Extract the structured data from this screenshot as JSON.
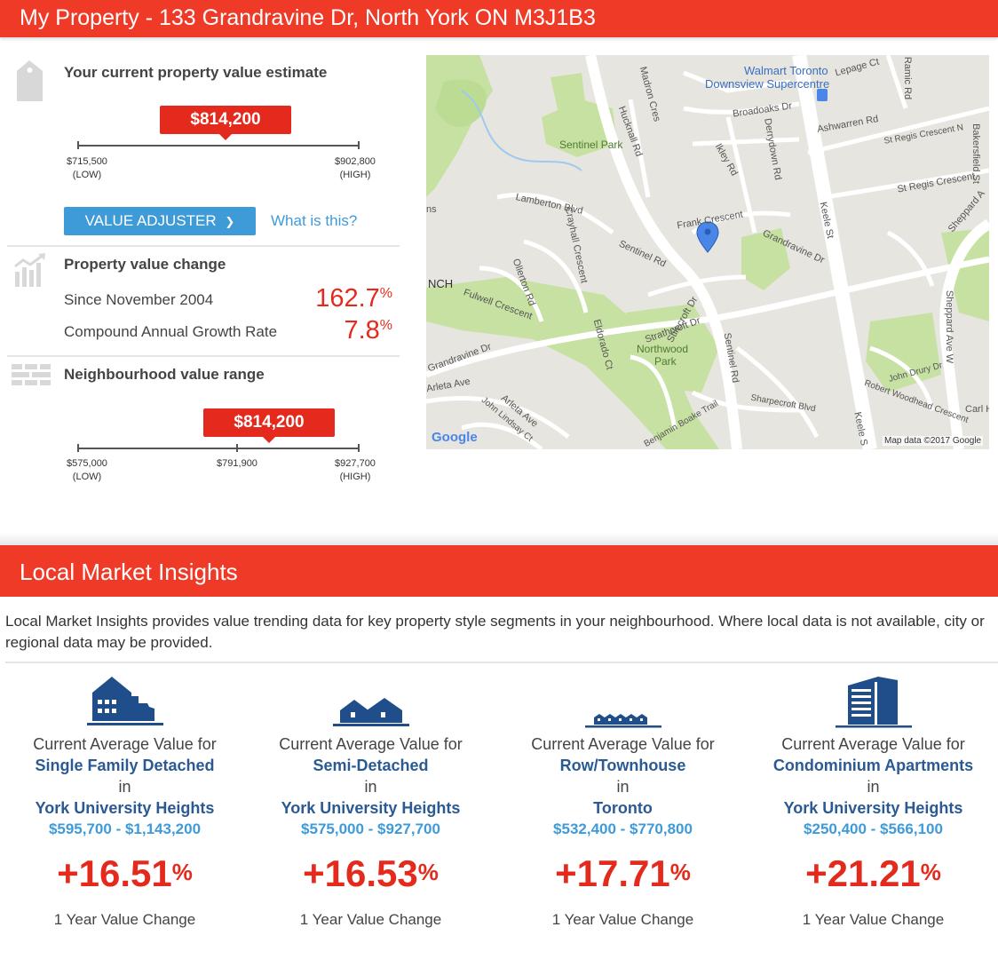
{
  "header": {
    "title": "My Property - 133 Grandravine Dr, North York ON M3J1B3"
  },
  "estimate": {
    "heading": "Your current property value estimate",
    "value": "$814,200",
    "low": "$715,500",
    "low_label": "(LOW)",
    "high": "$902,800",
    "high_label": "(HIGH)",
    "adjuster_button": "VALUE ADJUSTER",
    "adjuster_chevron": "❯",
    "what_link": "What is this?"
  },
  "value_change": {
    "heading": "Property value change",
    "since_label": "Since November 2004",
    "since_value": "162.7",
    "cagr_label": "Compound Annual Growth Rate",
    "cagr_value": "7.8",
    "pct": "%"
  },
  "neighbourhood": {
    "heading": "Neighbourhood value range",
    "value": "$814,200",
    "low": "$575,000",
    "low_label": "(LOW)",
    "mid": "$791,900",
    "high": "$927,700",
    "high_label": "(HIGH)"
  },
  "map": {
    "labels": {
      "walmart1": "Walmart Toronto",
      "walmart2": "Downsview Supercentre",
      "lepage": "Lepage Ct",
      "madron": "Madron Cres",
      "hucknall": "Hucknall Rd",
      "broadoaks": "Broadoaks Dr",
      "ashwarren": "Ashwarren Rd",
      "stregis_n": "St Regis Crescent N",
      "stregis": "St Regis Crescent",
      "sentinel_park": "Sentinel Park",
      "derrydown": "Derrydown Rd",
      "ikley": "Ikley Rd",
      "keele": "Keele St",
      "keele2": "Keele S",
      "lamberton": "Lamberton Blvd",
      "crayhall": "Crayhall Crescent",
      "frank": "Frank Crescent",
      "grandravine": "Grandravine Dr",
      "grandravine2": "Grandravine Dr",
      "sentinel_rd": "Sentinel Rd",
      "sentinel_rd2": "Sentinel Rd",
      "ollerton": "Ollerton Rd",
      "fulwell": "Fulwell Crescent",
      "stilecroft": "Stilecroft Dr",
      "strathcroft": "Strathcroft Dr",
      "eldorado": "Eldorado Ct",
      "northwood": "Northwood",
      "northwood2": "Park",
      "arleta": "Arleta Ave",
      "arleta2": "Arleta Ave",
      "lindsay": "John Lindsay Ct",
      "boake": "Benjamin Boake Trail",
      "sharpecroft": "Sharpecroft Blvd",
      "john_drury": "John Drury Dr",
      "woodhead": "Robert Woodhead Crescent",
      "sheppard_w": "Sheppard Ave W",
      "sheppard": "Sheppard A",
      "bakersfield": "Bakersfield St",
      "ramic": "Ramic Rd",
      "carl": "Carl H",
      "nch": "NCH",
      "ns": "ns",
      "google": "Google",
      "attribution": "Map data ©2017 Google"
    },
    "colors": {
      "park": "#c7e1a3",
      "road": "#ffffff",
      "bg": "#e7e5df",
      "pin": "#4a86e8"
    }
  },
  "insights": {
    "title": "Local Market Insights",
    "intro": "Local Market Insights provides value trending data for key property style segments in your neighbourhood. Where local data is not available, city or regional data may be provided.",
    "columns": [
      {
        "icon": "single-family-house-icon",
        "prefix": "Current Average Value for",
        "type": "Single Family Detached",
        "in": "in",
        "area": "York University Heights",
        "range": "$595,700 - $1,143,200",
        "change": "+16.51",
        "pct": "%",
        "change_label": "1 Year Value Change"
      },
      {
        "icon": "semi-detached-house-icon",
        "prefix": "Current Average Value for",
        "type": "Semi-Detached",
        "in": "in",
        "area": "York University Heights",
        "range": "$575,000 - $927,700",
        "change": "+16.53",
        "pct": "%",
        "change_label": "1 Year Value Change"
      },
      {
        "icon": "townhouse-icon",
        "prefix": "Current Average Value for",
        "type": "Row/Townhouse",
        "in": "in",
        "area": "Toronto",
        "range": "$532,400 - $770,800",
        "change": "+17.71",
        "pct": "%",
        "change_label": "1 Year Value Change"
      },
      {
        "icon": "condo-building-icon",
        "prefix": "Current Average Value for",
        "type": "Condominium Apartments",
        "in": "in",
        "area": "York University Heights",
        "range": "$250,400 - $566,100",
        "change": "+21.21",
        "pct": "%",
        "change_label": "1 Year Value Change"
      }
    ]
  },
  "colors": {
    "brand_red": "#ee3a27",
    "value_red": "#e42a1c",
    "link_blue": "#3f9bd8",
    "navy": "#2b5a93",
    "icon_navy": "#1f4e8a"
  }
}
